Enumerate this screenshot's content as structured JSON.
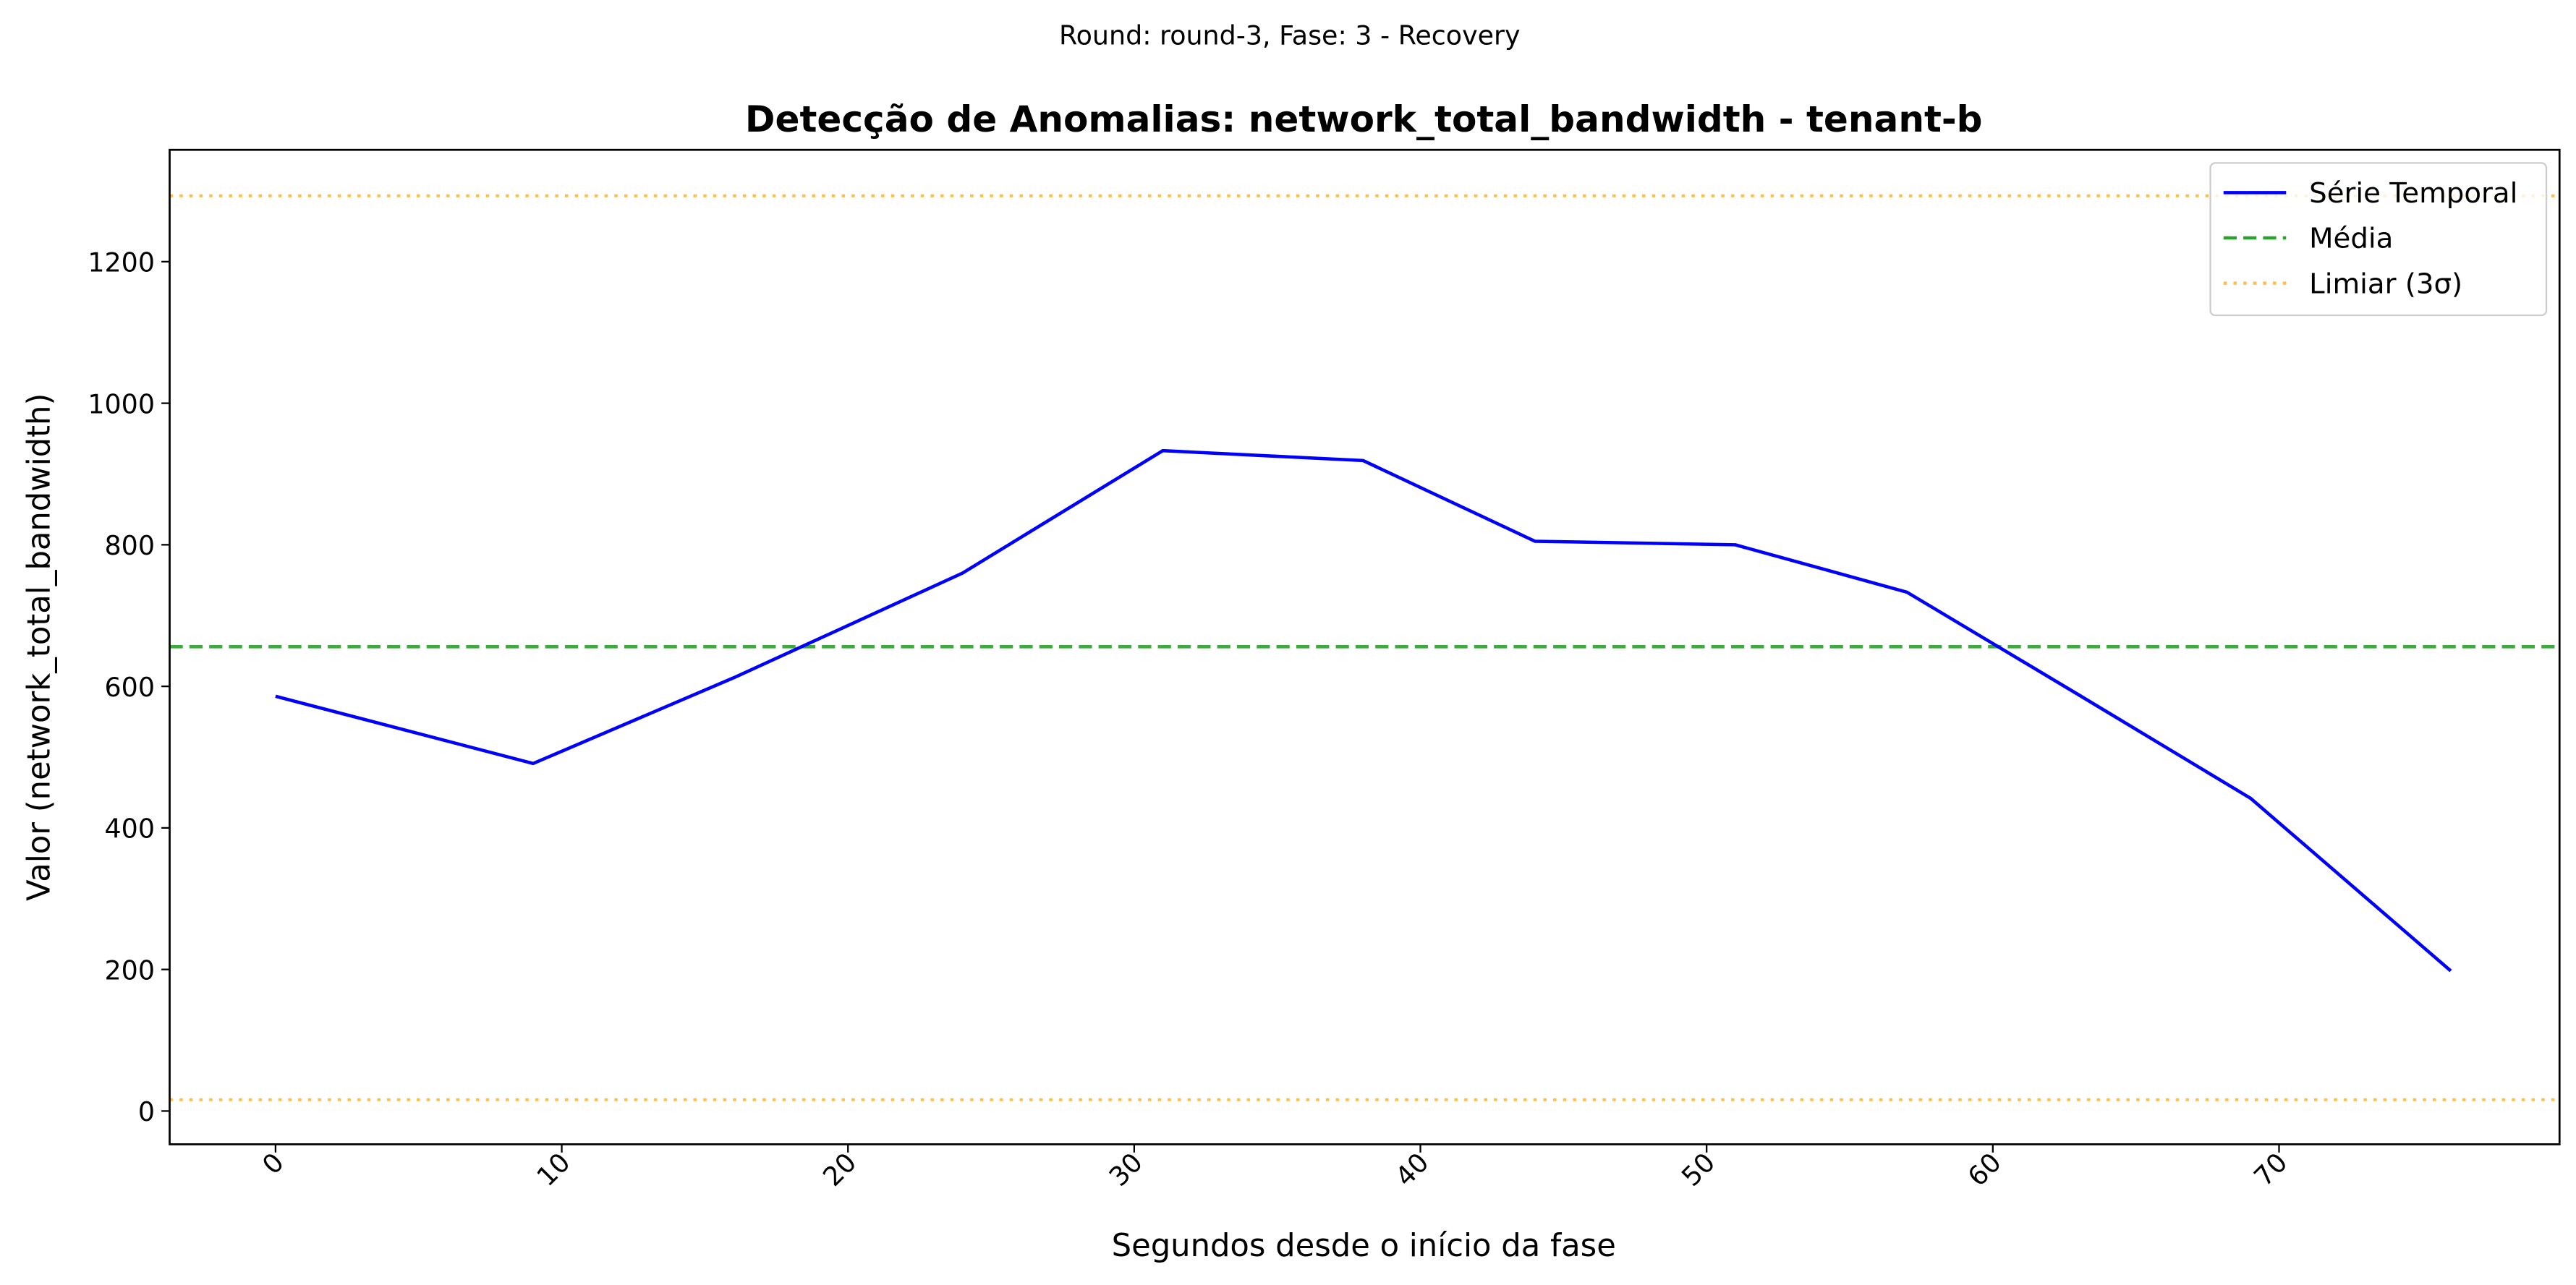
{
  "chart_data": {
    "type": "line",
    "suptitle": "Round: round-3, Fase: 3 - Recovery",
    "title": "Detecção de Anomalias: network_total_bandwidth - tenant-b",
    "xlabel": "Segundos desde o início da fase",
    "ylabel": "Valor (network_total_bandwidth)",
    "x": [
      0,
      9,
      16,
      24,
      31,
      38,
      44,
      51,
      57,
      63,
      69,
      76
    ],
    "series": [
      {
        "name": "Série Temporal",
        "color": "#0000ff",
        "values": [
          586,
          491,
          612,
          760,
          933,
          919,
          805,
          800,
          733,
          588,
          442,
          198
        ]
      }
    ],
    "reference_lines": [
      {
        "name": "Média",
        "color": "#2ca02c",
        "style": "dashed",
        "values": [
          656
        ]
      },
      {
        "name": "Limiar (3σ)",
        "color": "#ffa500",
        "style": "dotted",
        "values": [
          1293,
          16
        ]
      }
    ],
    "xlim": [
      -3.7,
      79.8
    ],
    "xticks": [
      0,
      10,
      20,
      30,
      40,
      50,
      60,
      70
    ],
    "ylim": [
      -47,
      1358
    ],
    "yticks": [
      0,
      200,
      400,
      600,
      800,
      1000,
      1200
    ],
    "grid": false,
    "legend": "upper right"
  }
}
